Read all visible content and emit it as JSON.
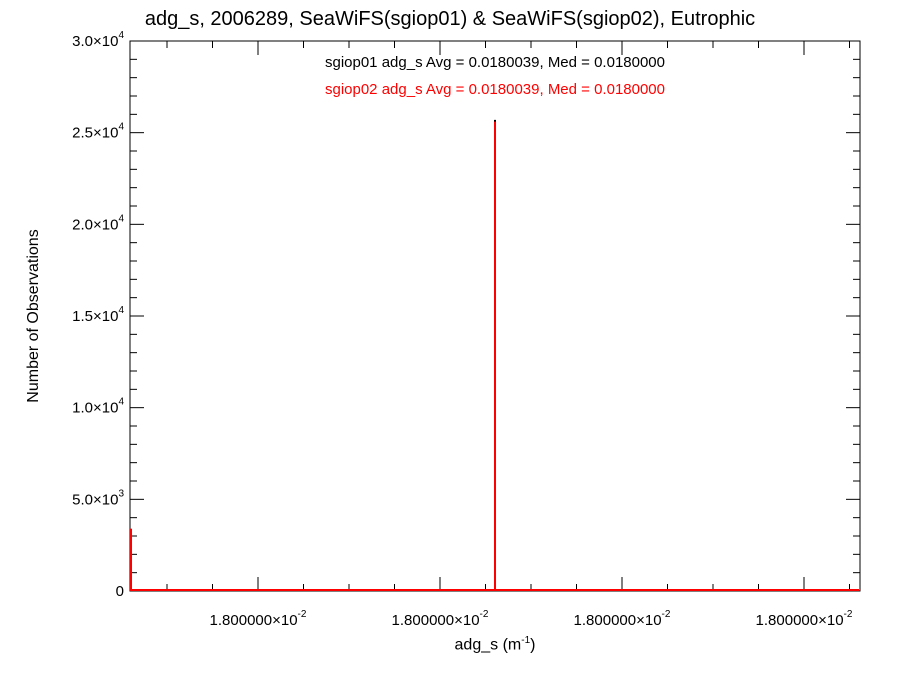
{
  "chart_data": {
    "type": "bar",
    "title": "adg_s, 2006289, SeaWiFS(sgiop01) & SeaWiFS(sgiop02), Eutrophic",
    "xlabel_base": "adg_s (m",
    "xlabel_sup": "-1",
    "xlabel_tail": ")",
    "ylabel": "Number of Observations",
    "ylim": [
      0,
      30000
    ],
    "y_ticks": [
      {
        "value": 0,
        "mant": "0",
        "exp": ""
      },
      {
        "value": 5000,
        "mant": "5.0×10",
        "exp": "3"
      },
      {
        "value": 10000,
        "mant": "1.0×10",
        "exp": "4"
      },
      {
        "value": 15000,
        "mant": "1.5×10",
        "exp": "4"
      },
      {
        "value": 20000,
        "mant": "2.0×10",
        "exp": "4"
      },
      {
        "value": 25000,
        "mant": "2.5×10",
        "exp": "4"
      },
      {
        "value": 30000,
        "mant": "3.0×10",
        "exp": "4"
      }
    ],
    "x_tick_labels": [
      {
        "mant": "1.800000×10",
        "exp": "-2"
      },
      {
        "mant": "1.800000×10",
        "exp": "-2"
      },
      {
        "mant": "1.800000×10",
        "exp": "-2"
      },
      {
        "mant": "1.800000×10",
        "exp": "-2"
      }
    ],
    "series": [
      {
        "name": "sgiop01",
        "color": "#000000",
        "peak": 25700,
        "left_edge": 0
      },
      {
        "name": "sgiop02",
        "color": "#ff0000",
        "peak": 25600,
        "left_edge": 3400
      }
    ],
    "annotations": [
      "sgiop01 adg_s Avg = 0.0180039, Med = 0.0180000",
      "sgiop02 adg_s Avg = 0.0180039, Med = 0.0180000"
    ]
  }
}
